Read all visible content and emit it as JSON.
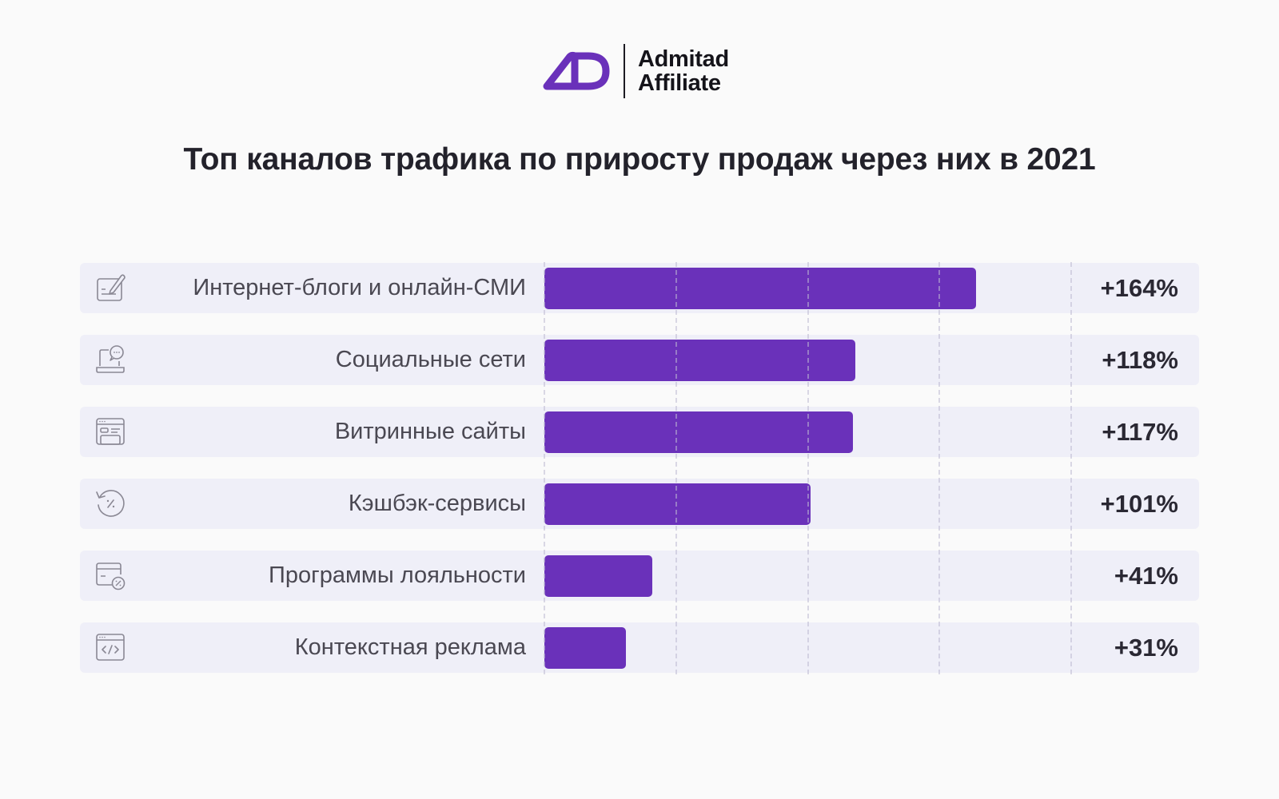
{
  "logo": {
    "line1": "Admitad",
    "line2": "Affiliate",
    "mark_color": "#6a31ba"
  },
  "chart_data": {
    "type": "bar",
    "orientation": "horizontal",
    "title": "Топ каналов трафика по приросту продаж через них в 2021",
    "categories": [
      "Интернет-блоги и онлайн-СМИ",
      "Социальные сети",
      "Витринные сайты",
      "Кэшбэк-сервисы",
      "Программы лояльности",
      "Контекстная реклама"
    ],
    "values": [
      164,
      118,
      117,
      101,
      41,
      31
    ],
    "value_labels": [
      "+164%",
      "+118%",
      "+117%",
      "+101%",
      "+41%",
      "+31%"
    ],
    "icons": [
      "edit-document-icon",
      "laptop-chat-icon",
      "storefront-window-icon",
      "cashback-refresh-icon",
      "card-discount-icon",
      "code-window-icon"
    ],
    "xlabel": "",
    "ylabel": "",
    "xlim": [
      0,
      200
    ],
    "gridlines": [
      0,
      50,
      100,
      150,
      200
    ],
    "grid": true,
    "unit": "%",
    "bar_color": "#6a31ba",
    "row_background": "#efeff8"
  }
}
